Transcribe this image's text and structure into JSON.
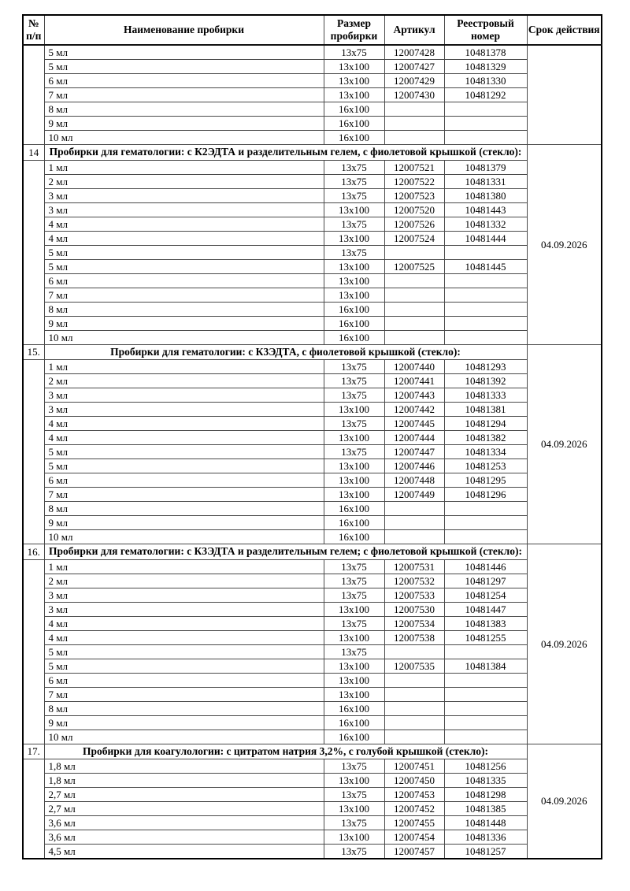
{
  "columns": {
    "num": "№ п/п",
    "name": "Наименование пробирки",
    "size": "Размер пробирки",
    "article": "Артикул",
    "registry": "Реестровый номер",
    "validity": "Срок действия"
  },
  "sections": [
    {
      "number": "",
      "title": "",
      "validity": "",
      "rows": [
        {
          "name": "5 мл",
          "size": "13x75",
          "article": "12007428",
          "registry": "10481378"
        },
        {
          "name": "5 мл",
          "size": "13x100",
          "article": "12007427",
          "registry": "10481329"
        },
        {
          "name": "6 мл",
          "size": "13x100",
          "article": "12007429",
          "registry": "10481330"
        },
        {
          "name": "7 мл",
          "size": "13x100",
          "article": "12007430",
          "registry": "10481292"
        },
        {
          "name": "8 мл",
          "size": "16x100",
          "article": "",
          "registry": ""
        },
        {
          "name": "9 мл",
          "size": "16x100",
          "article": "",
          "registry": ""
        },
        {
          "name": "10 мл",
          "size": "16x100",
          "article": "",
          "registry": ""
        }
      ]
    },
    {
      "number": "14",
      "title": "Пробирки для гематологии: с К2ЭДТА и разделительным гелем, с фиолетовой крышкой (стекло):",
      "validity": "04.09.2026",
      "rows": [
        {
          "name": "1 мл",
          "size": "13x75",
          "article": "12007521",
          "registry": "10481379"
        },
        {
          "name": "2 мл",
          "size": "13x75",
          "article": "12007522",
          "registry": "10481331"
        },
        {
          "name": "3 мл",
          "size": "13x75",
          "article": "12007523",
          "registry": "10481380"
        },
        {
          "name": "3 мл",
          "size": "13x100",
          "article": "12007520",
          "registry": "10481443"
        },
        {
          "name": "4 мл",
          "size": "13x75",
          "article": "12007526",
          "registry": "10481332"
        },
        {
          "name": "4 мл",
          "size": "13x100",
          "article": "12007524",
          "registry": "10481444"
        },
        {
          "name": "5 мл",
          "size": "13x75",
          "article": "",
          "registry": ""
        },
        {
          "name": "5 мл",
          "size": "13x100",
          "article": "12007525",
          "registry": "10481445"
        },
        {
          "name": "6 мл",
          "size": "13x100",
          "article": "",
          "registry": ""
        },
        {
          "name": "7 мл",
          "size": "13x100",
          "article": "",
          "registry": ""
        },
        {
          "name": "8 мл",
          "size": "16x100",
          "article": "",
          "registry": ""
        },
        {
          "name": "9 мл",
          "size": "16x100",
          "article": "",
          "registry": ""
        },
        {
          "name": "10 мл",
          "size": "16x100",
          "article": "",
          "registry": ""
        }
      ]
    },
    {
      "number": "15.",
      "title": "Пробирки для гематологии: с К3ЭДТА, с фиолетовой крышкой (стекло):",
      "validity": "04.09.2026",
      "rows": [
        {
          "name": "1 мл",
          "size": "13x75",
          "article": "12007440",
          "registry": "10481293"
        },
        {
          "name": "2 мл",
          "size": "13x75",
          "article": "12007441",
          "registry": "10481392"
        },
        {
          "name": "3 мл",
          "size": "13x75",
          "article": "12007443",
          "registry": "10481333"
        },
        {
          "name": "3 мл",
          "size": "13x100",
          "article": "12007442",
          "registry": "10481381"
        },
        {
          "name": "4 мл",
          "size": "13x75",
          "article": "12007445",
          "registry": "10481294"
        },
        {
          "name": "4 мл",
          "size": "13x100",
          "article": "12007444",
          "registry": "10481382"
        },
        {
          "name": "5 мл",
          "size": "13x75",
          "article": "12007447",
          "registry": "10481334"
        },
        {
          "name": "5 мл",
          "size": "13x100",
          "article": "12007446",
          "registry": "10481253"
        },
        {
          "name": "6 мл",
          "size": "13x100",
          "article": "12007448",
          "registry": "10481295"
        },
        {
          "name": "7 мл",
          "size": "13x100",
          "article": "12007449",
          "registry": "10481296"
        },
        {
          "name": "8 мл",
          "size": "16x100",
          "article": "",
          "registry": ""
        },
        {
          "name": "9 мл",
          "size": "16x100",
          "article": "",
          "registry": ""
        },
        {
          "name": "10 мл",
          "size": "16x100",
          "article": "",
          "registry": ""
        }
      ]
    },
    {
      "number": "16.",
      "title": "Пробирки для гематологии: с К3ЭДТА и разделительным гелем; с фиолетовой крышкой (стекло):",
      "validity": "04.09.2026",
      "rows": [
        {
          "name": "1 мл",
          "size": "13x75",
          "article": "12007531",
          "registry": "10481446"
        },
        {
          "name": "2 мл",
          "size": "13x75",
          "article": "12007532",
          "registry": "10481297"
        },
        {
          "name": "3 мл",
          "size": "13x75",
          "article": "12007533",
          "registry": "10481254"
        },
        {
          "name": "3 мл",
          "size": "13x100",
          "article": "12007530",
          "registry": "10481447"
        },
        {
          "name": "4 мл",
          "size": "13x75",
          "article": "12007534",
          "registry": "10481383"
        },
        {
          "name": "4 мл",
          "size": "13x100",
          "article": "12007538",
          "registry": "10481255"
        },
        {
          "name": "5 мл",
          "size": "13x75",
          "article": "",
          "registry": ""
        },
        {
          "name": "5 мл",
          "size": "13x100",
          "article": "12007535",
          "registry": "10481384"
        },
        {
          "name": "6 мл",
          "size": "13x100",
          "article": "",
          "registry": ""
        },
        {
          "name": "7 мл",
          "size": "13x100",
          "article": "",
          "registry": ""
        },
        {
          "name": "8 мл",
          "size": "16x100",
          "article": "",
          "registry": ""
        },
        {
          "name": "9 мл",
          "size": "16x100",
          "article": "",
          "registry": ""
        },
        {
          "name": "10 мл",
          "size": "16x100",
          "article": "",
          "registry": ""
        }
      ]
    },
    {
      "number": "17.",
      "title": "Пробирки для коагулологии: с цитратом натрия 3,2%, с голубой крышкой (стекло):",
      "validity": "04.09.2026",
      "rows": [
        {
          "name": "1,8 мл",
          "size": "13x75",
          "article": "12007451",
          "registry": "10481256"
        },
        {
          "name": "1,8 мл",
          "size": "13x100",
          "article": "12007450",
          "registry": "10481335"
        },
        {
          "name": "2,7 мл",
          "size": "13x75",
          "article": "12007453",
          "registry": "10481298"
        },
        {
          "name": "2,7 мл",
          "size": "13x100",
          "article": "12007452",
          "registry": "10481385"
        },
        {
          "name": "3,6 мл",
          "size": "13x75",
          "article": "12007455",
          "registry": "10481448"
        },
        {
          "name": "3,6 мл",
          "size": "13x100",
          "article": "12007454",
          "registry": "10481336"
        },
        {
          "name": "4,5 мл",
          "size": "13x75",
          "article": "12007457",
          "registry": "10481257"
        }
      ]
    }
  ]
}
